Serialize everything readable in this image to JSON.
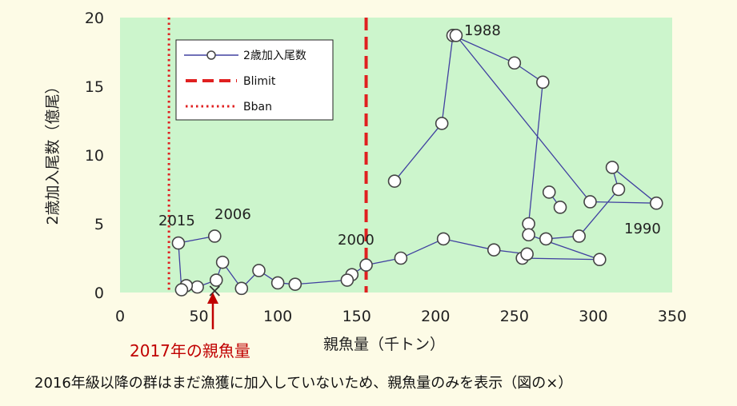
{
  "chart_data": {
    "type": "scatter",
    "xlabel": "親魚量（千トン）",
    "ylabel": "2歳加入尾数（億尾）",
    "xlim": [
      0,
      350
    ],
    "ylim": [
      0,
      20
    ],
    "xticks": [
      "0",
      "50",
      "100",
      "150",
      "200",
      "250",
      "300",
      "350"
    ],
    "yticks": [
      "0",
      "5",
      "10",
      "15",
      "20"
    ],
    "grid": false,
    "legend_position": "top-left",
    "legend": [
      {
        "label": "2歳加入尾数",
        "style": "line-circle"
      },
      {
        "label": "Blimit",
        "style": "dashed-red"
      },
      {
        "label": "Bban",
        "style": "dotted-red"
      }
    ],
    "blimit_x": 156,
    "bban_x": 31,
    "series": [
      {
        "name": "2歳加入尾数",
        "points": [
          [
            174,
            8.1
          ],
          [
            204,
            12.3
          ],
          [
            211,
            18.7
          ],
          [
            250,
            16.7
          ],
          [
            268,
            15.3
          ],
          [
            259,
            5.0
          ],
          [
            259,
            4.2
          ],
          [
            304,
            2.4
          ],
          [
            255,
            2.5
          ],
          [
            258,
            2.8
          ],
          [
            237,
            3.1
          ],
          [
            205,
            3.9
          ],
          [
            178,
            2.5
          ],
          [
            156,
            2.0
          ],
          [
            147,
            1.3
          ],
          [
            144,
            0.9
          ],
          [
            111,
            0.6
          ],
          [
            100,
            0.7
          ],
          [
            88,
            1.6
          ],
          [
            77,
            0.3
          ],
          [
            65,
            2.2
          ],
          [
            61,
            0.9
          ],
          [
            49,
            0.4
          ],
          [
            42,
            0.5
          ],
          [
            39,
            0.2
          ],
          [
            37,
            3.6
          ],
          [
            60,
            4.1
          ]
        ]
      },
      {
        "name": "2歳加入尾数",
        "points": [
          [
            213,
            18.7
          ],
          [
            298,
            6.6
          ],
          [
            340,
            6.5
          ],
          [
            312,
            9.1
          ],
          [
            316,
            7.5
          ],
          [
            291,
            4.1
          ],
          [
            270,
            3.9
          ]
        ]
      },
      {
        "name": "2歳加入尾数",
        "points": [
          [
            272,
            7.3
          ],
          [
            279,
            6.2
          ]
        ]
      }
    ],
    "annotations": [
      "1988",
      "1990",
      "2000",
      "2006",
      "2015"
    ],
    "spawning_2017_x": 60
  },
  "annotation_2017": "2017年の親魚量",
  "caption": "2016年級以降の群はまだ漁獲に加入していないため、親魚量のみを表示（図の×）",
  "colors": {
    "plot_bg": "#ccf5cc",
    "series_line": "#4040a0",
    "marker_fill": "#ffffff",
    "marker_stroke": "#444444",
    "reference_red": "#e02020",
    "arrow_red": "#c00000"
  }
}
